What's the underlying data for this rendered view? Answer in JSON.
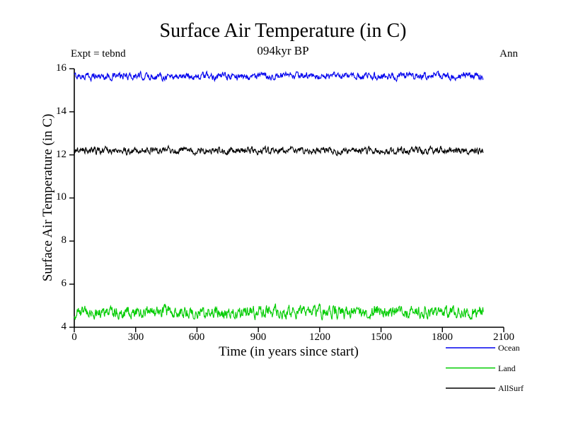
{
  "chart_data": {
    "type": "line",
    "title": "Surface Air Temperature (in C)",
    "subtitle": "094kyr BP",
    "annotation_left": "Expt = tebnd",
    "annotation_right": "Ann",
    "xlabel": "Time (in years since start)",
    "ylabel": "Surface Air Temperature (in C)",
    "xlim": [
      0,
      2100
    ],
    "ylim": [
      4,
      16
    ],
    "x_ticks": [
      0,
      300,
      600,
      900,
      1200,
      1500,
      1800,
      2100
    ],
    "y_ticks": [
      16,
      14,
      12,
      10,
      8,
      6,
      4
    ],
    "grid": false,
    "legend_position": "bottom-right",
    "series": [
      {
        "name": "Ocean",
        "color": "#0000ee",
        "mean": 15.65,
        "noise_amplitude": 0.13,
        "x_start": 0,
        "x_end": 2000,
        "points": 1001
      },
      {
        "name": "AllSurf",
        "color": "#000000",
        "mean": 12.2,
        "noise_amplitude": 0.13,
        "x_start": 0,
        "x_end": 2000,
        "points": 1001
      },
      {
        "name": "Land",
        "color": "#00cc00",
        "mean": 4.7,
        "noise_amplitude": 0.22,
        "x_start": 0,
        "x_end": 2000,
        "points": 1001
      }
    ],
    "legend": [
      {
        "label": "Ocean",
        "color": "#0000ee"
      },
      {
        "label": "Land",
        "color": "#00cc00"
      },
      {
        "label": "AllSurf",
        "color": "#000000"
      }
    ]
  }
}
